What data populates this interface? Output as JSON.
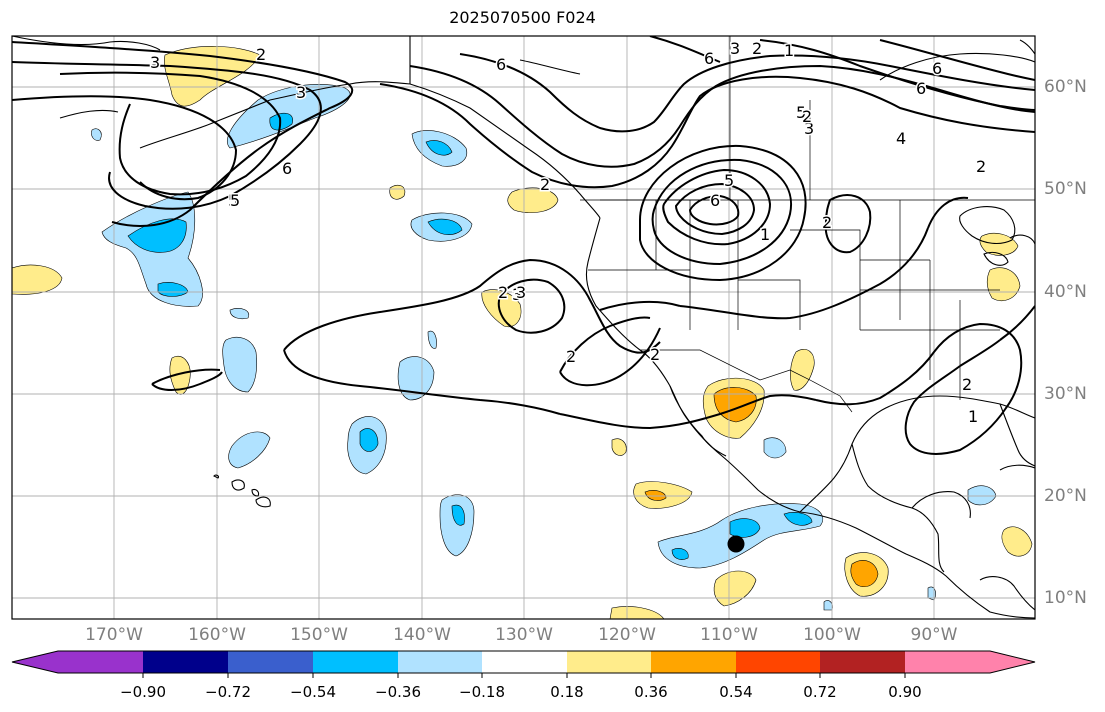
{
  "title": "2025070500 F024",
  "lon_labels": [
    "170°W",
    "160°W",
    "150°W",
    "140°W",
    "130°W",
    "120°W",
    "110°W",
    "100°W",
    "90°W"
  ],
  "lat_labels": [
    "60°N",
    "50°N",
    "40°N",
    "30°N",
    "20°N",
    "10°N"
  ],
  "colorbar": {
    "ticks": [
      "−0.90",
      "−0.72",
      "−0.54",
      "−0.36",
      "−0.18",
      "0.18",
      "0.36",
      "0.54",
      "0.72",
      "0.90"
    ],
    "colors": [
      "#9932CC",
      "#00008B",
      "#3A5FCD",
      "#00BFFF",
      "#B0E2FF",
      "#FFFFFF",
      "#FFEC8B",
      "#FFA500",
      "#FF4500",
      "#B22222",
      "#FF82AB"
    ]
  },
  "contour_labels": [
    "3",
    "2",
    "3",
    "6",
    "5",
    "6",
    "2",
    "6",
    "5",
    "6",
    "3",
    "2",
    "1",
    "5",
    "3",
    "2",
    "6",
    "4",
    "6",
    "5",
    "3",
    "2",
    "2",
    "1",
    "2",
    "2",
    "3",
    "2",
    "2",
    "1"
  ],
  "colors": {
    "coast": "#000000",
    "grid": "#b0b0b0",
    "marker": "#000000"
  }
}
